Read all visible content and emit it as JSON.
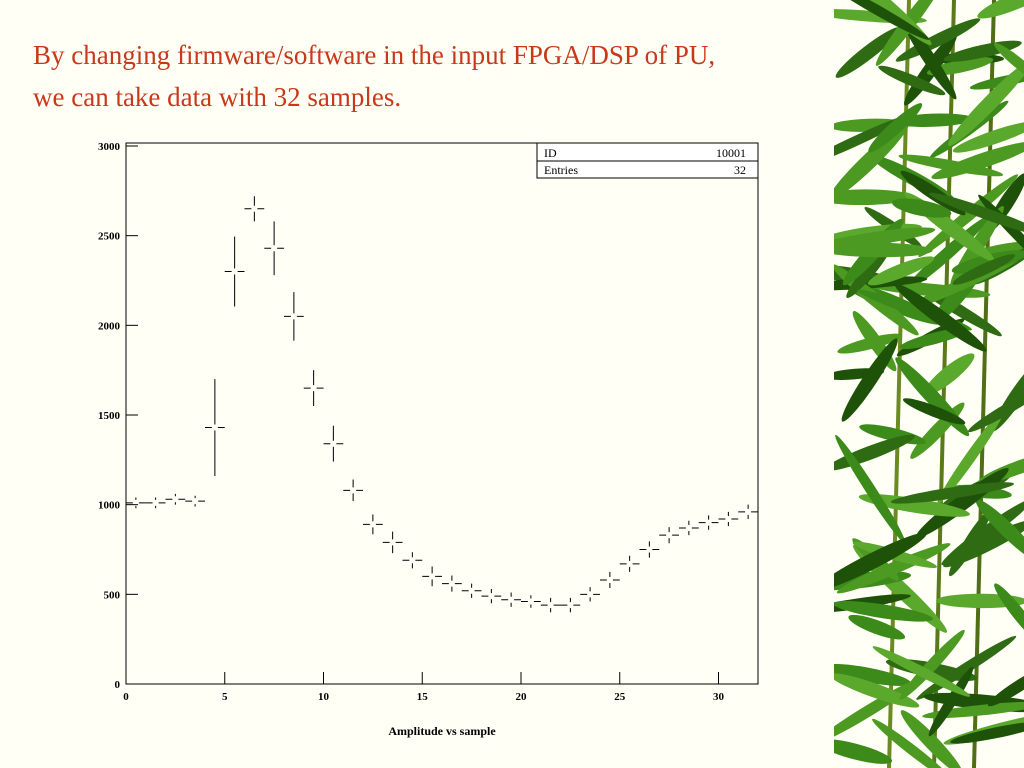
{
  "title_lines": [
    "By changing firmware/software in the input FPGA/DSP of PU,",
    "we can take data with 32 samples."
  ],
  "chart_data": {
    "type": "histogram",
    "x_label": "Amplitude vs sample",
    "bins": [
      0,
      1,
      2,
      3,
      4,
      5,
      6,
      7,
      8,
      9,
      10,
      11,
      12,
      13,
      14,
      15,
      16,
      17,
      18,
      19,
      20,
      21,
      22,
      23,
      24,
      25,
      26,
      27,
      28,
      29,
      30,
      31,
      32
    ],
    "values": [
      1010,
      1010,
      1030,
      1020,
      1430,
      2300,
      2650,
      2430,
      2050,
      1650,
      1340,
      1080,
      890,
      790,
      690,
      600,
      560,
      520,
      490,
      470,
      460,
      440,
      440,
      500,
      580,
      670,
      750,
      830,
      870,
      900,
      920,
      960
    ],
    "errors": [
      30,
      30,
      30,
      30,
      270,
      195,
      70,
      150,
      135,
      100,
      100,
      60,
      55,
      60,
      45,
      55,
      45,
      40,
      40,
      40,
      35,
      40,
      40,
      40,
      45,
      45,
      45,
      45,
      40,
      40,
      40,
      40
    ],
    "color": "#000000",
    "xlim": [
      0,
      32
    ],
    "xticks": [
      0,
      5,
      10,
      15,
      20,
      25,
      30
    ],
    "ylim": [
      0,
      3000
    ],
    "yticks": [
      0,
      500,
      1000,
      1500,
      2000,
      2500,
      3000
    ],
    "stats": [
      {
        "label": "ID",
        "value": 10001
      },
      {
        "label": "Entries",
        "value": 32
      }
    ]
  }
}
